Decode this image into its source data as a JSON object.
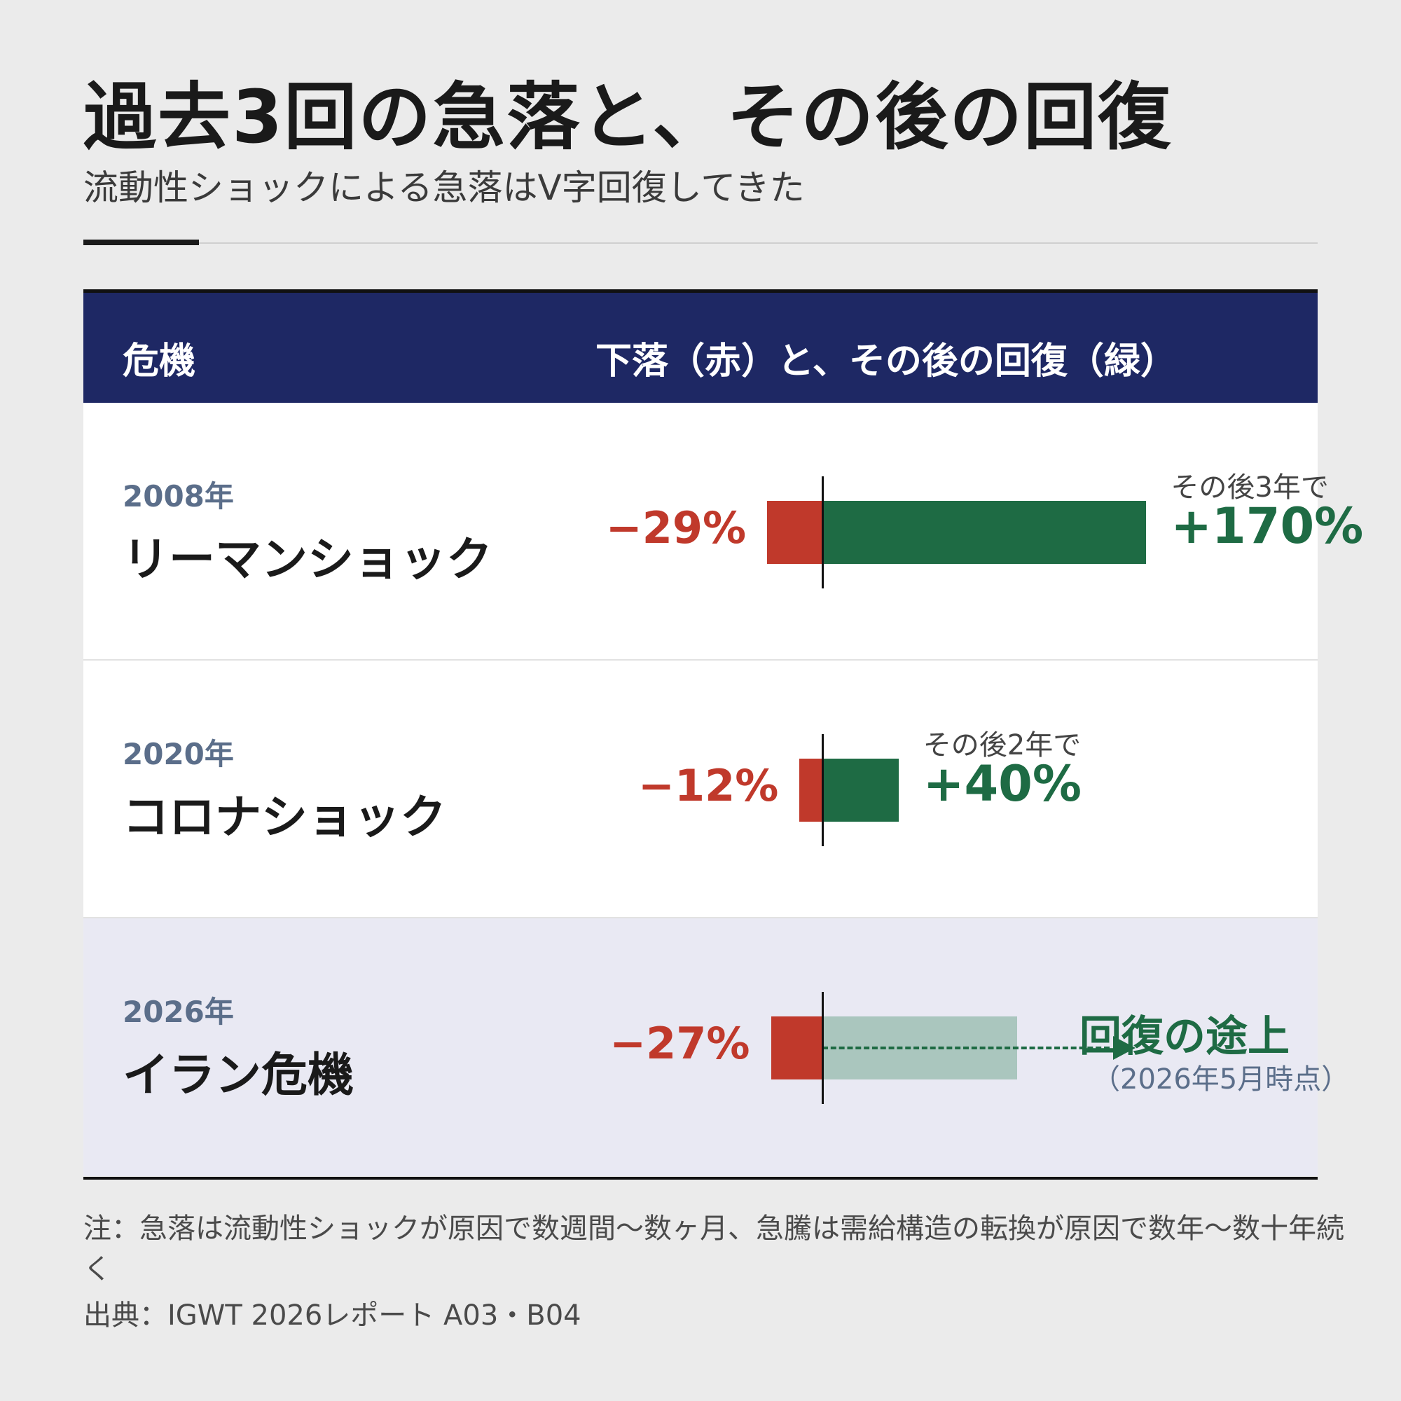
{
  "title": "過去3回の急落と、その後の回復",
  "subtitle": "流動性ショックによる急落はV字回復してきた",
  "table": {
    "header": {
      "col1": "危機",
      "col2": "下落（赤）と、その後の回復（緑）"
    }
  },
  "chart_data": {
    "type": "bar",
    "title": "過去3回の急落と、その後の回復",
    "colors": {
      "drop": "#c0392b",
      "recovery": "#1e6b44",
      "in_progress": "#aac6be",
      "header_bg": "#1e2864"
    },
    "rows": [
      {
        "year": "2008年",
        "name": "リーマンショック",
        "drop": -29,
        "drop_label": "−29%",
        "recovery": 170,
        "recovery_period": "その後3年で",
        "recovery_label": "+170%"
      },
      {
        "year": "2020年",
        "name": "コロナショック",
        "drop": -12,
        "drop_label": "−12%",
        "recovery": 40,
        "recovery_period": "その後2年で",
        "recovery_label": "+40%"
      },
      {
        "year": "2026年",
        "name": "イラン危機",
        "drop": -27,
        "drop_label": "−27%",
        "status": "回復の途上",
        "status_note": "（2026年5月時点）",
        "highlighted": true
      }
    ]
  },
  "note": "注：急落は流動性ショックが原因で数週間〜数ヶ月、急騰は需給構造の転換が原因で数年〜数十年続く",
  "source": "出典：IGWT 2026レポート A03・B04"
}
